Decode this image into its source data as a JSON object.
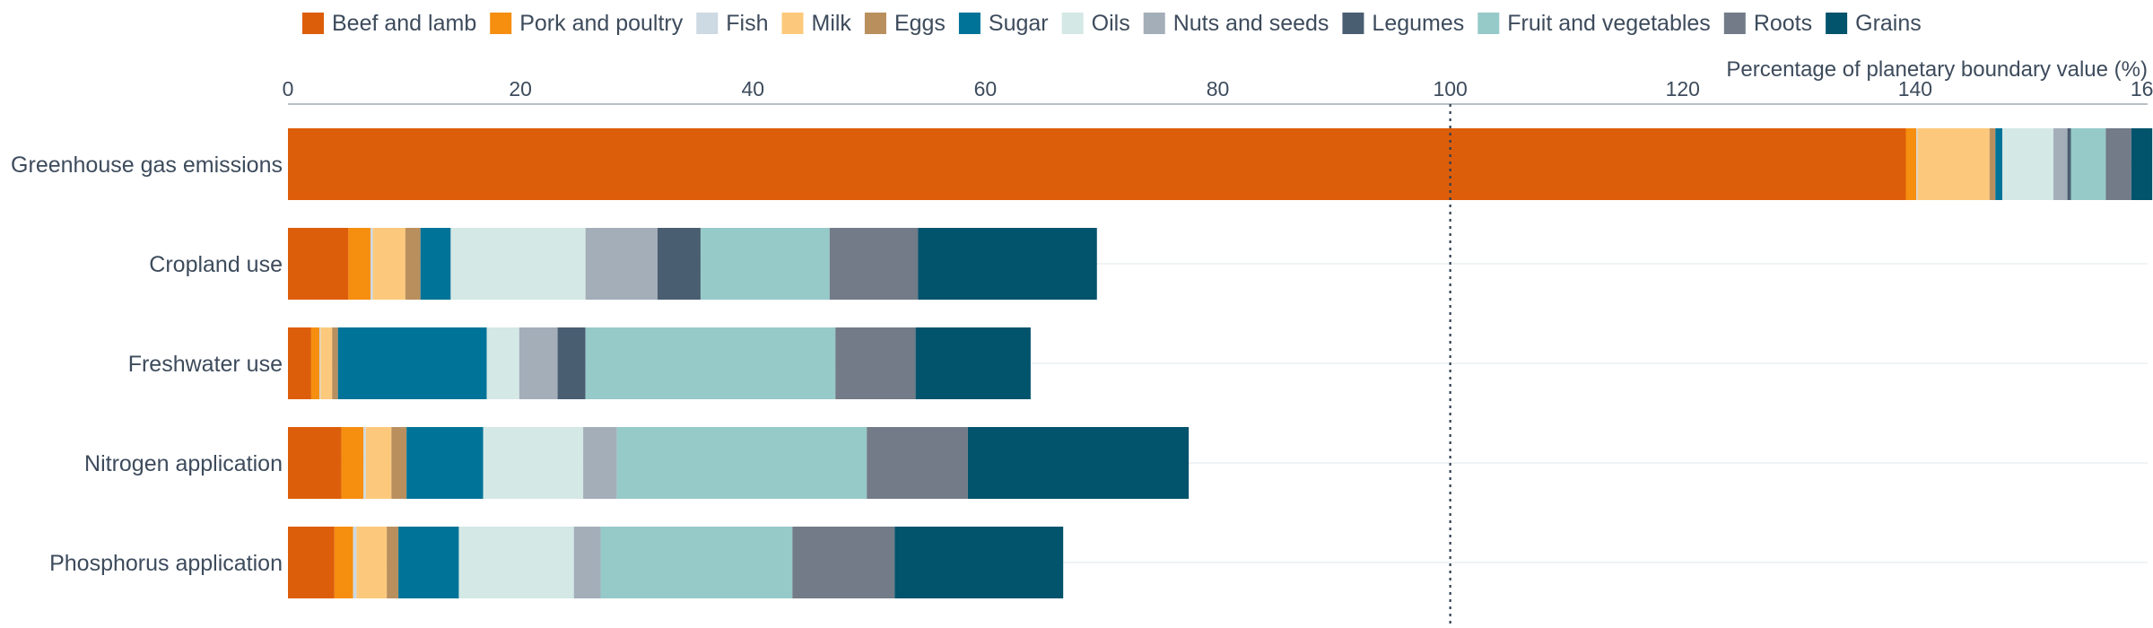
{
  "chart_data": {
    "type": "bar",
    "orientation": "horizontal",
    "stacked": true,
    "xlabel": "Percentage of planetary boundary value (%)",
    "xlim": [
      0,
      160
    ],
    "x_ticks": [
      0,
      20,
      40,
      60,
      80,
      100,
      120,
      140,
      160
    ],
    "reference_line": {
      "x": 100,
      "style": "dotted"
    },
    "legend_position": "top",
    "grid": "horizontal-light",
    "categories": [
      "Greenhouse gas emissions",
      "Cropland use",
      "Freshwater use",
      "Nitrogen application",
      "Phosphorus application"
    ],
    "series": [
      {
        "name": "Beef and lamb",
        "color": "#dd5e0a",
        "values": [
          139.2,
          5.2,
          2.0,
          4.6,
          4.0
        ]
      },
      {
        "name": "Pork and poultry",
        "color": "#f68e0f",
        "values": [
          0.9,
          1.9,
          0.7,
          1.9,
          1.6
        ]
      },
      {
        "name": "Fish",
        "color": "#cdd9e3",
        "values": [
          0.1,
          0.2,
          0.1,
          0.2,
          0.3
        ]
      },
      {
        "name": "Milk",
        "color": "#fcc97c",
        "values": [
          6.2,
          2.8,
          1.0,
          2.2,
          2.6
        ]
      },
      {
        "name": "Eggs",
        "color": "#b98f5e",
        "values": [
          0.5,
          1.3,
          0.5,
          1.3,
          1.0
        ]
      },
      {
        "name": "Sugar",
        "color": "#007398",
        "values": [
          0.6,
          2.6,
          12.8,
          6.6,
          5.2
        ]
      },
      {
        "name": "Oils",
        "color": "#d4e8e6",
        "values": [
          4.4,
          11.6,
          2.8,
          8.6,
          9.9
        ]
      },
      {
        "name": "Nuts and seeds",
        "color": "#a3aeb9",
        "values": [
          1.2,
          6.2,
          3.3,
          2.9,
          2.3
        ]
      },
      {
        "name": "Legumes",
        "color": "#4a5e71",
        "values": [
          0.3,
          3.7,
          2.4,
          0.0,
          0.0
        ]
      },
      {
        "name": "Fruit and vegetables",
        "color": "#96cac9",
        "values": [
          3.0,
          11.1,
          21.5,
          21.5,
          16.5
        ]
      },
      {
        "name": "Roots",
        "color": "#727b87",
        "values": [
          2.2,
          7.6,
          6.9,
          8.7,
          8.8
        ]
      },
      {
        "name": "Grains",
        "color": "#02536c",
        "values": [
          1.8,
          15.4,
          9.9,
          19.0,
          14.5
        ]
      }
    ]
  }
}
